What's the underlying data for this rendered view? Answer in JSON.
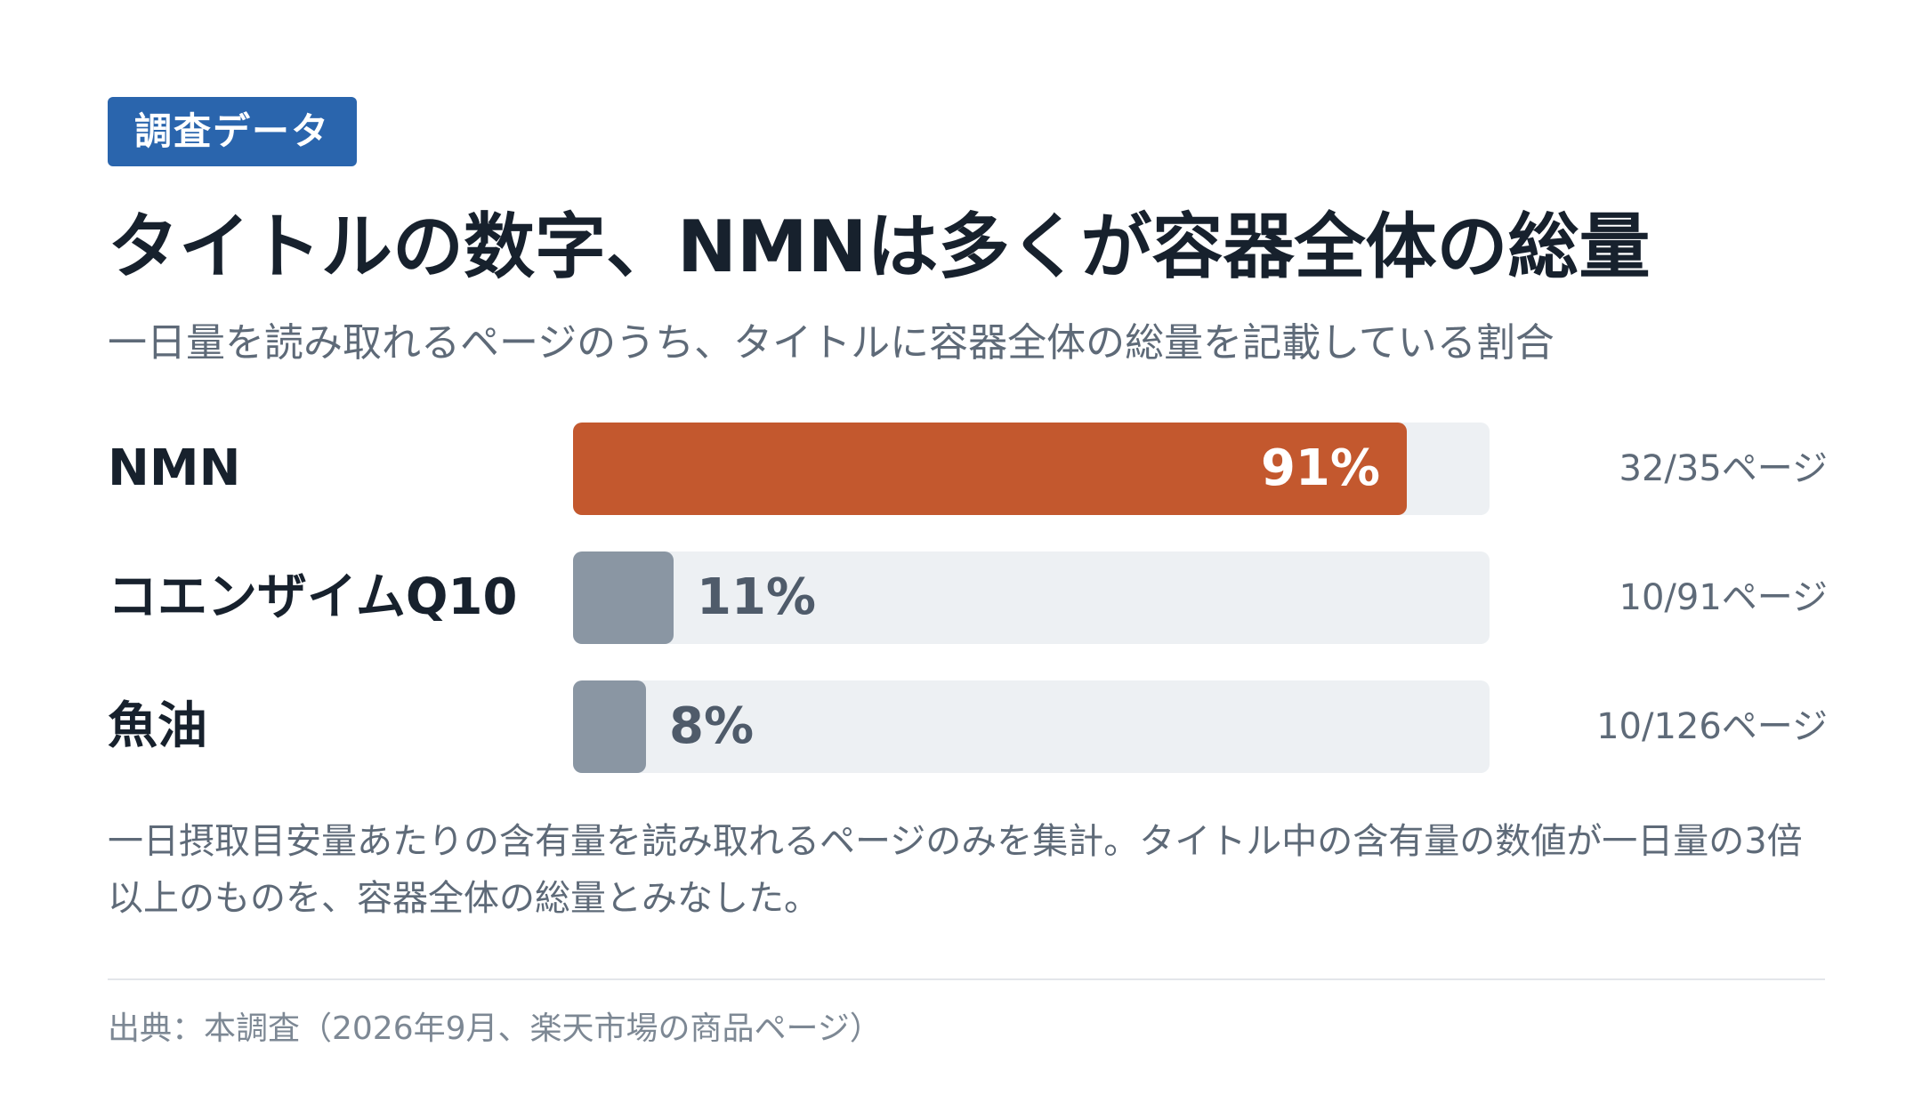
{
  "badge": "調査データ",
  "title": "タイトルの数字、NMNは多くが容器全体の総量",
  "subtitle": "一日量を読み取れるページのうち、タイトルに容器全体の総量を記載している割合",
  "chart_data": {
    "type": "bar",
    "orientation": "horizontal",
    "categories": [
      "NMN",
      "コエンザイムQ10",
      "魚油"
    ],
    "values": [
      91,
      11,
      8
    ],
    "value_labels": [
      "91%",
      "11%",
      "8%"
    ],
    "page_labels": [
      "32/35ページ",
      "10/91ページ",
      "10/126ページ"
    ],
    "xlim": [
      0,
      100
    ],
    "unit": "%"
  },
  "colors": {
    "highlight": "#c3582e",
    "muted": "#8a96a3",
    "track": "#edf0f3",
    "highlight_text": "#ffffff",
    "muted_text": "#4f5b6a"
  },
  "note": "一日摂取目安量あたりの含有量を読み取れるページのみを集計。タイトル中の含有量の数値が一日量の3倍以上のものを、容器全体の総量とみなした。",
  "source": "出典：本調査（2026年9月、楽天市場の商品ページ）"
}
